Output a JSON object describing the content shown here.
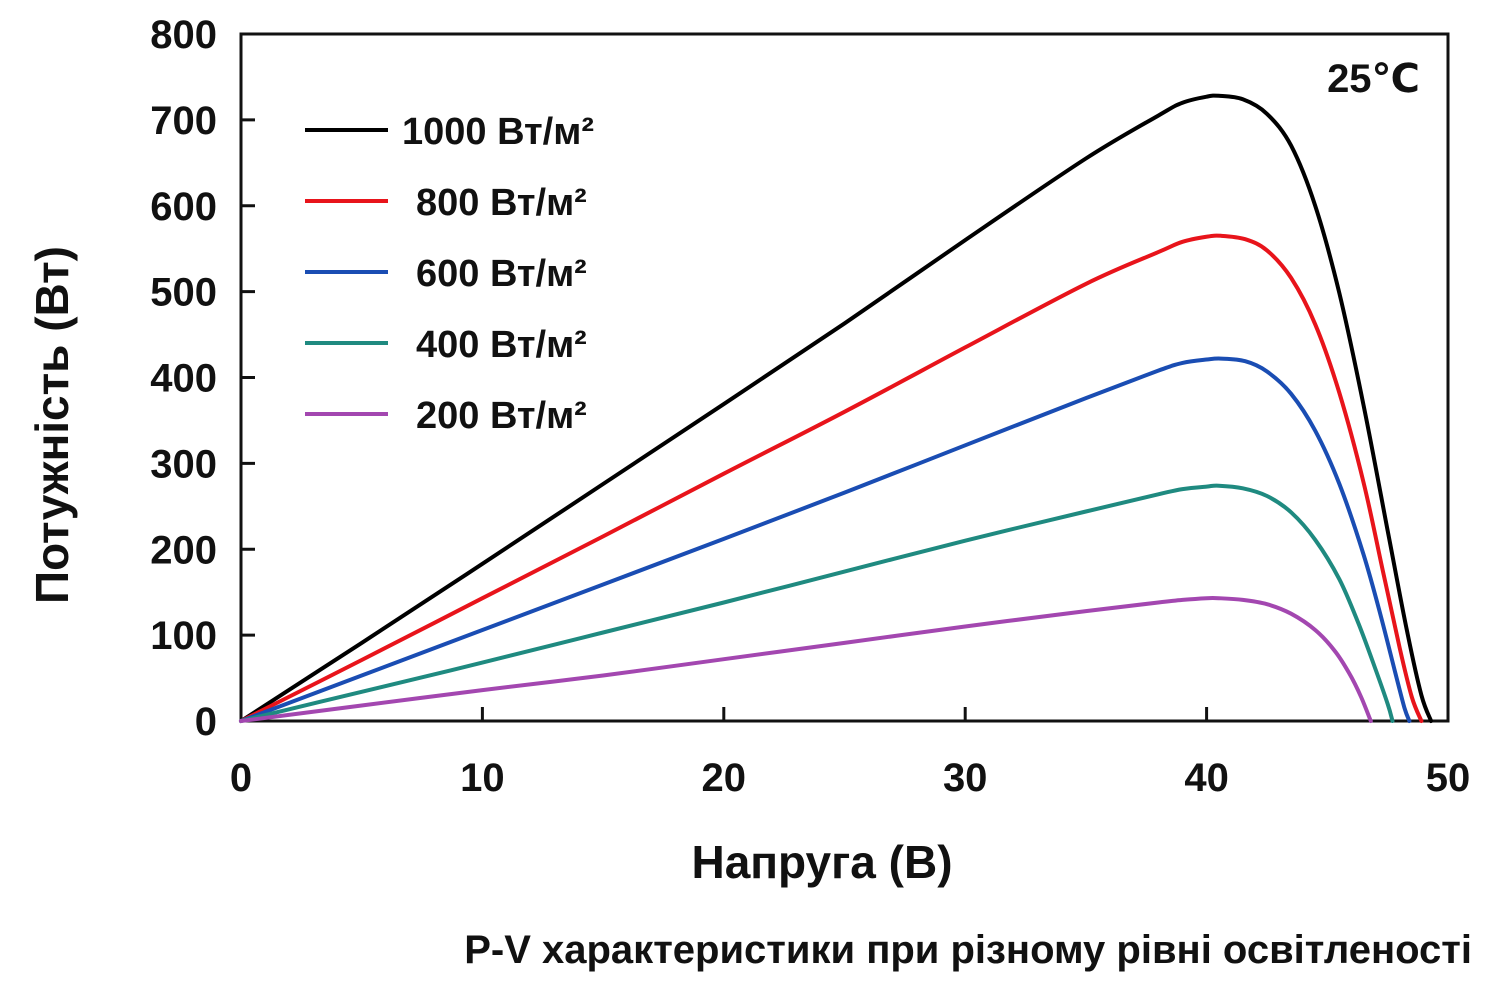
{
  "chart_data": {
    "type": "line",
    "title": "",
    "caption": "P-V  характеристики при різному рівні освітленості",
    "xlabel": "Напруга  (В)",
    "ylabel": "Потужність (Вт)",
    "xlim": [
      0,
      50
    ],
    "ylim": [
      0,
      800
    ],
    "xticks": [
      0,
      10,
      20,
      30,
      40,
      50
    ],
    "yticks": [
      0,
      100,
      200,
      300,
      400,
      500,
      600,
      700,
      800
    ],
    "grid": false,
    "legend_position": "top-left",
    "annotation": "25℃",
    "series": [
      {
        "name": "1000 Вт/м²",
        "color": "#000000",
        "points": [
          [
            0,
            0
          ],
          [
            5,
            91
          ],
          [
            10,
            183
          ],
          [
            15,
            276
          ],
          [
            20,
            369
          ],
          [
            25,
            463
          ],
          [
            30,
            560
          ],
          [
            35,
            655
          ],
          [
            38,
            705
          ],
          [
            39,
            720
          ],
          [
            40,
            727
          ],
          [
            40.5,
            728
          ],
          [
            41.5,
            724
          ],
          [
            42.5,
            707
          ],
          [
            43.5,
            670
          ],
          [
            44.5,
            600
          ],
          [
            45.5,
            498
          ],
          [
            46.5,
            368
          ],
          [
            47.5,
            222
          ],
          [
            48.3,
            105
          ],
          [
            48.9,
            30
          ],
          [
            49.3,
            0
          ]
        ]
      },
      {
        "name": "800 Вт/м²",
        "color": "#e8141b",
        "points": [
          [
            0,
            0
          ],
          [
            5,
            71
          ],
          [
            10,
            143
          ],
          [
            15,
            215
          ],
          [
            20,
            288
          ],
          [
            25,
            360
          ],
          [
            30,
            435
          ],
          [
            35,
            509
          ],
          [
            38,
            546
          ],
          [
            39,
            558
          ],
          [
            40,
            564
          ],
          [
            40.6,
            565
          ],
          [
            41.6,
            561
          ],
          [
            42.5,
            548
          ],
          [
            43.5,
            516
          ],
          [
            44.5,
            462
          ],
          [
            45.5,
            382
          ],
          [
            46.5,
            278
          ],
          [
            47.3,
            175
          ],
          [
            48,
            85
          ],
          [
            48.5,
            28
          ],
          [
            48.9,
            0
          ]
        ]
      },
      {
        "name": "600 Вт/м²",
        "color": "#1a4db3",
        "points": [
          [
            0,
            0
          ],
          [
            5,
            53
          ],
          [
            10,
            106
          ],
          [
            15,
            159
          ],
          [
            20,
            212
          ],
          [
            25,
            266
          ],
          [
            30,
            321
          ],
          [
            35,
            376
          ],
          [
            38,
            408
          ],
          [
            39,
            417
          ],
          [
            40,
            421
          ],
          [
            40.6,
            422
          ],
          [
            41.6,
            419
          ],
          [
            42.5,
            407
          ],
          [
            43.5,
            381
          ],
          [
            44.5,
            338
          ],
          [
            45.5,
            276
          ],
          [
            46.5,
            194
          ],
          [
            47.2,
            124
          ],
          [
            47.8,
            58
          ],
          [
            48.2,
            15
          ],
          [
            48.4,
            0
          ]
        ]
      },
      {
        "name": "400 Вт/м²",
        "color": "#1f8a80",
        "points": [
          [
            0,
            0
          ],
          [
            5,
            34
          ],
          [
            10,
            68
          ],
          [
            15,
            103
          ],
          [
            20,
            138
          ],
          [
            25,
            174
          ],
          [
            30,
            210
          ],
          [
            35,
            244
          ],
          [
            38,
            264
          ],
          [
            39,
            270
          ],
          [
            40,
            273
          ],
          [
            40.5,
            274
          ],
          [
            41.5,
            271
          ],
          [
            42.5,
            262
          ],
          [
            43.5,
            243
          ],
          [
            44.5,
            211
          ],
          [
            45.5,
            165
          ],
          [
            46.3,
            113
          ],
          [
            47,
            60
          ],
          [
            47.5,
            20
          ],
          [
            47.7,
            0
          ]
        ]
      },
      {
        "name": "200 Вт/м²",
        "color": "#a347b0",
        "points": [
          [
            0,
            0
          ],
          [
            5,
            18
          ],
          [
            10,
            36
          ],
          [
            15,
            53
          ],
          [
            20,
            72
          ],
          [
            25,
            91
          ],
          [
            30,
            110
          ],
          [
            35,
            128
          ],
          [
            38,
            138
          ],
          [
            39,
            141
          ],
          [
            40,
            143
          ],
          [
            40.5,
            143
          ],
          [
            41.5,
            141
          ],
          [
            42.5,
            136
          ],
          [
            43.5,
            125
          ],
          [
            44.5,
            106
          ],
          [
            45.3,
            82
          ],
          [
            45.9,
            56
          ],
          [
            46.4,
            28
          ],
          [
            46.8,
            0
          ]
        ]
      }
    ]
  }
}
